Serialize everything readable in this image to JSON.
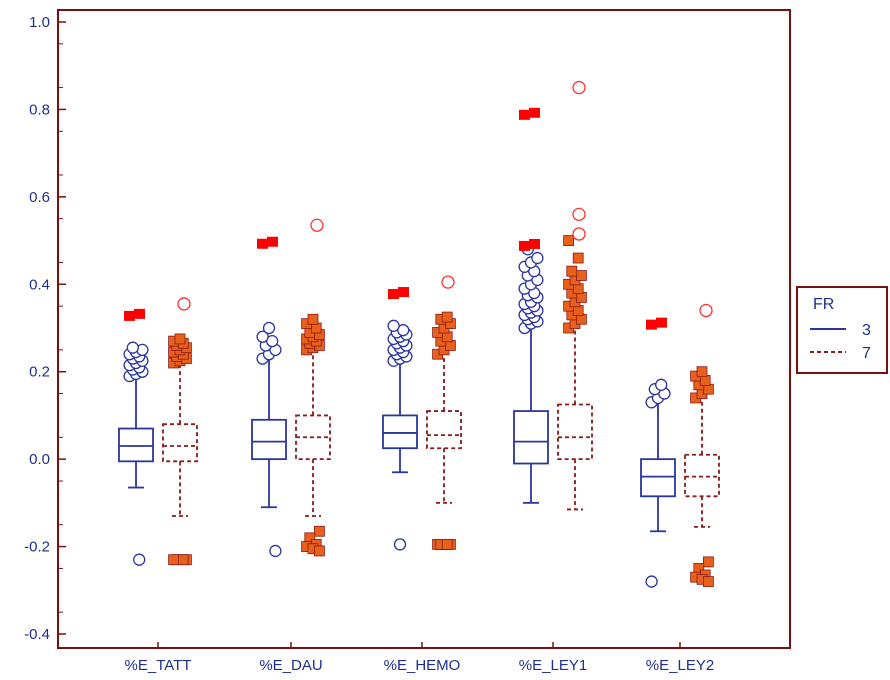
{
  "chart_data": {
    "type": "boxplot",
    "grouping_variable": "FR",
    "categories": [
      "%E_TATT",
      "%E_DAU",
      "%E_HEMO",
      "%E_LEY1",
      "%E_LEY2"
    ],
    "y_axis": {
      "range": [
        -0.4,
        1.0
      ],
      "ticks": [
        -0.4,
        -0.2,
        0.0,
        0.2,
        0.4,
        0.6,
        0.8,
        1.0
      ],
      "tick_labels": [
        "-0.4",
        "-0.2",
        "0.0",
        "0.2",
        "0.4",
        "0.6",
        "0.8",
        "1.0"
      ]
    },
    "grid": false,
    "legend": {
      "title": "FR",
      "placement": "right",
      "entries": [
        {
          "label": "3",
          "line": "solid"
        },
        {
          "label": "7",
          "line": "dashed"
        }
      ]
    },
    "colors": {
      "axis_frame": "#7a1010",
      "series_3": "#2a35a0",
      "series_7": "#8b1a1a",
      "outlier_7_fill": "#e8601a",
      "extreme_fill": "#ff0000",
      "extreme_open": "#ff3030"
    },
    "series": [
      {
        "name": "3",
        "boxes": [
          {
            "category": "%E_TATT",
            "whisker_low": -0.065,
            "q1": -0.005,
            "median": 0.03,
            "q3": 0.07,
            "whisker_high": 0.19,
            "outliers": [
              0.19,
              0.195,
              0.2,
              0.205,
              0.21,
              0.215,
              0.22,
              0.225,
              0.23,
              0.235,
              0.24,
              0.245,
              0.25,
              0.255,
              -0.23
            ]
          },
          {
            "category": "%E_DAU",
            "whisker_low": -0.11,
            "q1": 0.0,
            "median": 0.04,
            "q3": 0.09,
            "whisker_high": 0.23,
            "outliers": [
              0.23,
              0.24,
              0.25,
              0.26,
              0.27,
              0.28,
              0.3,
              -0.21
            ]
          },
          {
            "category": "%E_HEMO",
            "whisker_low": -0.03,
            "q1": 0.025,
            "median": 0.06,
            "q3": 0.1,
            "whisker_high": 0.225,
            "outliers": [
              0.225,
              0.23,
              0.235,
              0.24,
              0.245,
              0.25,
              0.255,
              0.26,
              0.265,
              0.27,
              0.275,
              0.28,
              0.285,
              0.29,
              0.295,
              0.305,
              -0.195
            ]
          },
          {
            "category": "%E_LEY1",
            "whisker_low": -0.1,
            "q1": -0.01,
            "median": 0.04,
            "q3": 0.11,
            "whisker_high": 0.3,
            "outliers": [
              0.3,
              0.31,
              0.315,
              0.32,
              0.325,
              0.33,
              0.335,
              0.34,
              0.345,
              0.35,
              0.355,
              0.36,
              0.37,
              0.375,
              0.38,
              0.39,
              0.4,
              0.41,
              0.42,
              0.43,
              0.44,
              0.45,
              0.46,
              0.48
            ]
          },
          {
            "category": "%E_LEY2",
            "whisker_low": -0.165,
            "q1": -0.085,
            "median": -0.04,
            "q3": 0.0,
            "whisker_high": 0.13,
            "outliers": [
              0.13,
              0.14,
              0.15,
              0.16,
              0.17,
              -0.28
            ]
          }
        ]
      },
      {
        "name": "7",
        "boxes": [
          {
            "category": "%E_TATT",
            "whisker_low": -0.13,
            "q1": -0.005,
            "median": 0.03,
            "q3": 0.08,
            "whisker_high": 0.22,
            "outliers": [
              0.22,
              0.225,
              0.23,
              0.235,
              0.24,
              0.245,
              0.25,
              0.255,
              0.26,
              0.265,
              0.27,
              0.275,
              -0.23,
              -0.23,
              -0.23,
              -0.23
            ],
            "extreme": 0.355
          },
          {
            "category": "%E_DAU",
            "whisker_low": -0.13,
            "q1": 0.0,
            "median": 0.05,
            "q3": 0.1,
            "whisker_high": 0.25,
            "outliers": [
              0.25,
              0.255,
              0.26,
              0.265,
              0.27,
              0.275,
              0.28,
              0.285,
              0.29,
              0.3,
              0.31,
              0.32,
              -0.165,
              -0.18,
              -0.195,
              -0.2,
              -0.205,
              -0.21
            ],
            "extreme": 0.535
          },
          {
            "category": "%E_HEMO",
            "whisker_low": -0.1,
            "q1": 0.025,
            "median": 0.055,
            "q3": 0.11,
            "whisker_high": 0.24,
            "outliers": [
              0.24,
              0.25,
              0.26,
              0.27,
              0.28,
              0.29,
              0.3,
              0.31,
              0.32,
              0.325,
              -0.195,
              -0.195,
              -0.195,
              -0.195,
              -0.195
            ],
            "extreme": 0.405
          },
          {
            "category": "%E_LEY1",
            "whisker_low": -0.115,
            "q1": 0.0,
            "median": 0.05,
            "q3": 0.125,
            "whisker_high": 0.3,
            "outliers": [
              0.3,
              0.31,
              0.32,
              0.33,
              0.34,
              0.35,
              0.36,
              0.37,
              0.38,
              0.39,
              0.4,
              0.41,
              0.42,
              0.43,
              0.46,
              0.5
            ],
            "extreme": [
              0.515,
              0.56,
              0.85
            ]
          },
          {
            "category": "%E_LEY2",
            "whisker_low": -0.155,
            "q1": -0.085,
            "median": -0.04,
            "q3": 0.01,
            "whisker_high": 0.14,
            "outliers": [
              0.14,
              0.15,
              0.16,
              0.17,
              0.18,
              0.19,
              0.2,
              -0.235,
              -0.25,
              -0.265,
              -0.27,
              -0.275,
              -0.28
            ],
            "extreme": 0.34
          }
        ]
      }
    ],
    "reference_markers": [
      {
        "category": "%E_TATT",
        "value": 0.33
      },
      {
        "category": "%E_DAU",
        "value": 0.495
      },
      {
        "category": "%E_HEMO",
        "value": 0.38
      },
      {
        "category": "%E_LEY1",
        "value": [
          0.49,
          0.79
        ]
      },
      {
        "category": "%E_LEY2",
        "value": 0.31
      }
    ]
  }
}
